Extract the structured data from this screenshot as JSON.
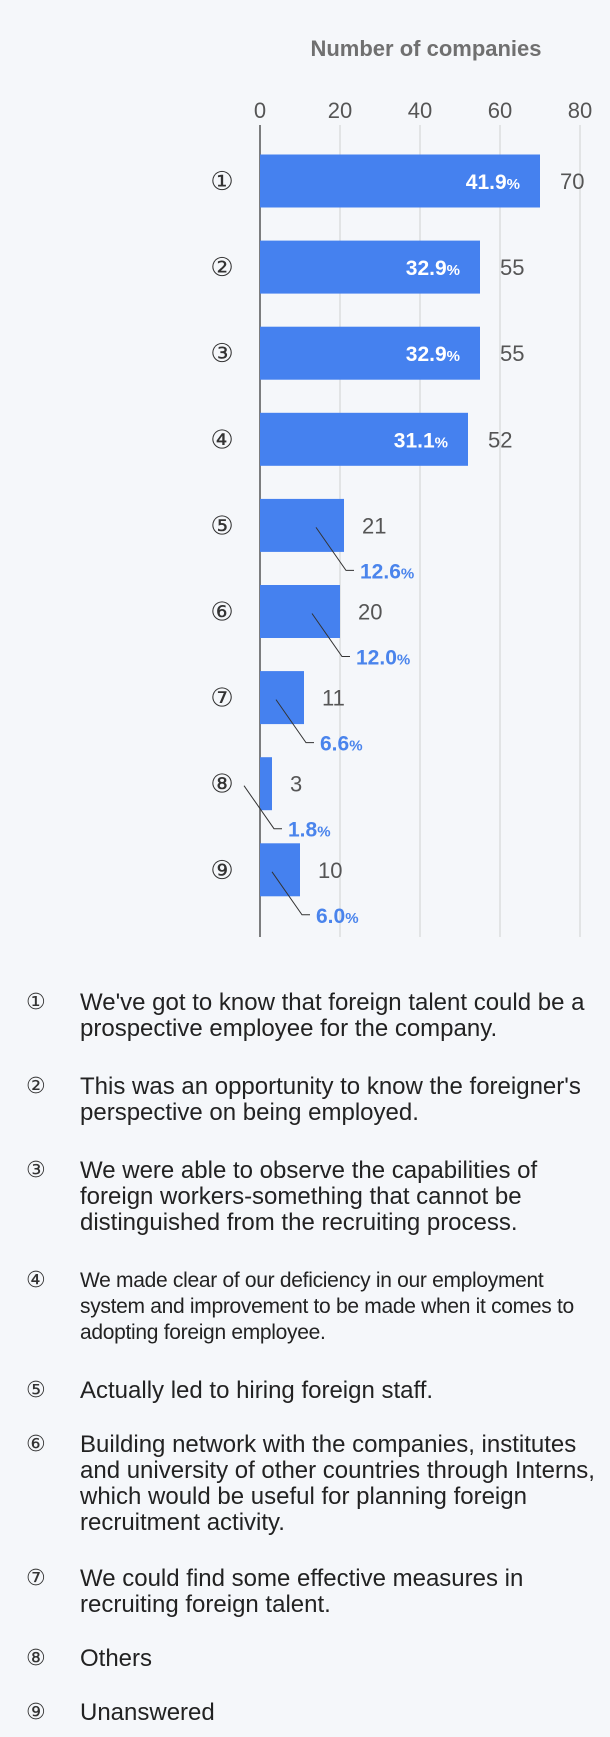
{
  "chart_data": {
    "type": "bar",
    "orientation": "horizontal",
    "xlabel": "Number of companies",
    "xlim": [
      0,
      80
    ],
    "xticks": [
      0,
      20,
      40,
      60,
      80
    ],
    "grid": true,
    "categories": [
      "①",
      "②",
      "③",
      "④",
      "⑤",
      "⑥",
      "⑦",
      "⑧",
      "⑨"
    ],
    "values": [
      70,
      55,
      55,
      52,
      21,
      20,
      11,
      3,
      10
    ],
    "percentages": [
      "41.9",
      "32.9",
      "32.9",
      "31.1",
      "12.6",
      "12.0",
      "6.6",
      "1.8",
      "6.0"
    ],
    "percent_unit": "%"
  },
  "colors": {
    "bar": "#4581ef",
    "percent_outside": "#4a84ec",
    "grid": "#d0d0d0",
    "axis": "#555555",
    "background": "#f5f7fa"
  },
  "legend": [
    {
      "num": "①",
      "text": "We've got to know that foreign talent could be a prospective employee for the company."
    },
    {
      "num": "②",
      "text": "This was an opportunity to know the foreigner's perspective on  being employed."
    },
    {
      "num": "③",
      "text": "We were able to observe the capabilities of foreign workers-something that cannot be distinguished from the recruiting process."
    },
    {
      "num": "④",
      "text": "We made clear of our deficiency in our employment system and improvement to be made when it comes to adopting foreign employee."
    },
    {
      "num": "⑤",
      "text": "Actually led to hiring foreign staff."
    },
    {
      "num": "⑥",
      "text": "Building network with the companies, institutes and university of other countries through Interns, which would be useful for planning foreign recruitment activity."
    },
    {
      "num": "⑦",
      "text": "We could find some effective measures in recruiting foreign talent."
    },
    {
      "num": "⑧",
      "text": "Others"
    },
    {
      "num": "⑨",
      "text": "Unanswered"
    }
  ]
}
